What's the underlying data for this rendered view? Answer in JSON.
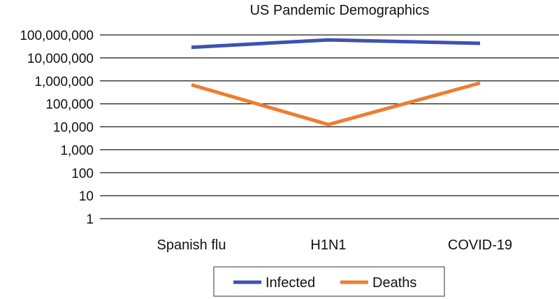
{
  "chart_data": {
    "type": "line",
    "title": "US Pandemic Demographics",
    "categories": [
      "Spanish flu",
      "H1N1",
      "COVID-19"
    ],
    "y_scale": "log",
    "ylim": [
      1,
      100000000
    ],
    "y_tick_values": [
      1,
      10,
      100,
      1000,
      10000,
      100000,
      1000000,
      10000000,
      100000000
    ],
    "y_tick_labels": [
      "1",
      "10",
      "100",
      "1,000",
      "10,000",
      "100,000",
      "1,000,000",
      "10,000,000",
      "100,000,000"
    ],
    "series": [
      {
        "name": "Infected",
        "color": "#3f51b0",
        "values": [
          29000000,
          61000000,
          43000000
        ]
      },
      {
        "name": "Deaths",
        "color": "#ee7d31",
        "values": [
          675000,
          12500,
          800000
        ]
      }
    ],
    "grid": "horizontal",
    "legend_position": "bottom-center"
  }
}
